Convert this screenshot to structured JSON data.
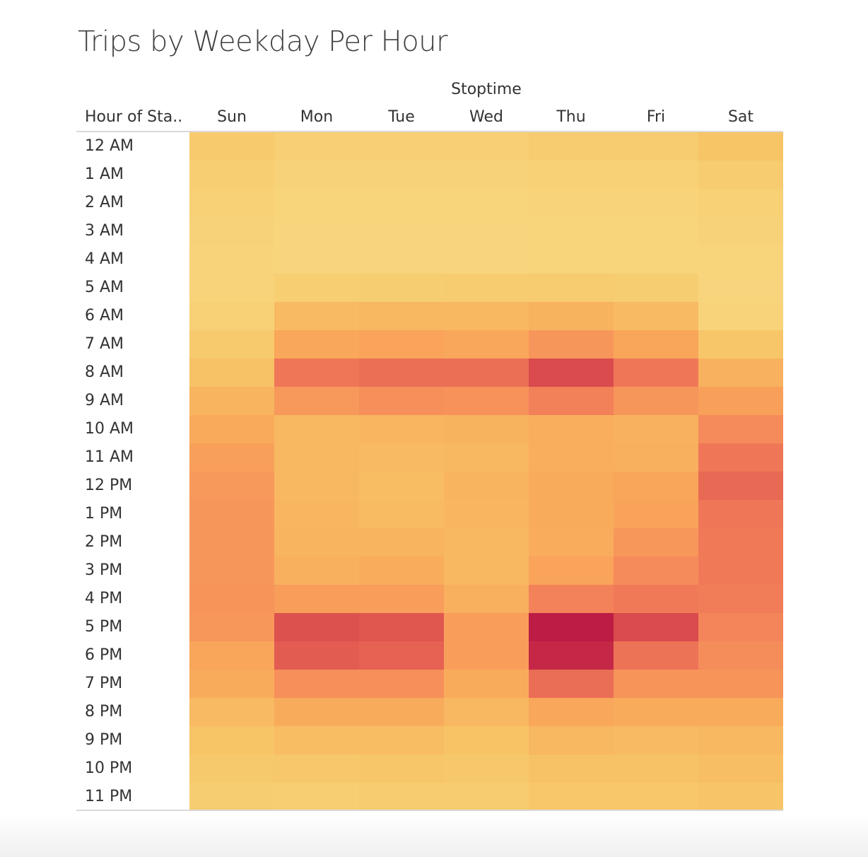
{
  "chart_data": {
    "type": "heatmap",
    "title": "Trips by Weekday Per Hour",
    "column_group_label": "Stoptime",
    "row_header_label": "Hour of Sta..",
    "columns": [
      "Sun",
      "Mon",
      "Tue",
      "Wed",
      "Thu",
      "Fri",
      "Sat"
    ],
    "rows": [
      "12 AM",
      "1 AM",
      "2 AM",
      "3 AM",
      "4 AM",
      "5 AM",
      "6 AM",
      "7 AM",
      "8 AM",
      "9 AM",
      "10 AM",
      "11 AM",
      "12 PM",
      "1 PM",
      "2 PM",
      "3 PM",
      "4 PM",
      "5 PM",
      "6 PM",
      "7 PM",
      "8 PM",
      "9 PM",
      "10 PM",
      "11 PM"
    ],
    "values": [
      [
        0.14,
        0.09,
        0.09,
        0.09,
        0.12,
        0.12,
        0.2
      ],
      [
        0.1,
        0.06,
        0.06,
        0.06,
        0.07,
        0.07,
        0.12
      ],
      [
        0.08,
        0.04,
        0.04,
        0.04,
        0.05,
        0.05,
        0.08
      ],
      [
        0.06,
        0.03,
        0.03,
        0.03,
        0.04,
        0.04,
        0.06
      ],
      [
        0.05,
        0.03,
        0.03,
        0.03,
        0.04,
        0.04,
        0.04
      ],
      [
        0.05,
        0.1,
        0.11,
        0.12,
        0.13,
        0.11,
        0.03
      ],
      [
        0.07,
        0.27,
        0.29,
        0.29,
        0.32,
        0.27,
        0.05
      ],
      [
        0.14,
        0.4,
        0.42,
        0.4,
        0.5,
        0.41,
        0.18
      ],
      [
        0.22,
        0.66,
        0.7,
        0.7,
        0.85,
        0.66,
        0.33
      ],
      [
        0.31,
        0.48,
        0.54,
        0.52,
        0.62,
        0.5,
        0.44
      ],
      [
        0.38,
        0.28,
        0.3,
        0.32,
        0.35,
        0.33,
        0.56
      ],
      [
        0.44,
        0.28,
        0.27,
        0.29,
        0.35,
        0.34,
        0.66
      ],
      [
        0.48,
        0.28,
        0.25,
        0.31,
        0.37,
        0.41,
        0.73
      ],
      [
        0.5,
        0.3,
        0.26,
        0.3,
        0.37,
        0.43,
        0.66
      ],
      [
        0.5,
        0.31,
        0.31,
        0.29,
        0.36,
        0.49,
        0.65
      ],
      [
        0.5,
        0.34,
        0.36,
        0.29,
        0.42,
        0.56,
        0.65
      ],
      [
        0.51,
        0.46,
        0.46,
        0.34,
        0.61,
        0.65,
        0.64
      ],
      [
        0.49,
        0.83,
        0.81,
        0.45,
        1.0,
        0.85,
        0.6
      ],
      [
        0.41,
        0.79,
        0.76,
        0.45,
        0.96,
        0.68,
        0.55
      ],
      [
        0.37,
        0.54,
        0.54,
        0.37,
        0.71,
        0.51,
        0.51
      ],
      [
        0.27,
        0.37,
        0.37,
        0.28,
        0.4,
        0.37,
        0.37
      ],
      [
        0.2,
        0.25,
        0.25,
        0.21,
        0.29,
        0.27,
        0.29
      ],
      [
        0.15,
        0.16,
        0.18,
        0.16,
        0.22,
        0.22,
        0.24
      ],
      [
        0.11,
        0.1,
        0.12,
        0.12,
        0.17,
        0.17,
        0.19
      ]
    ],
    "color_scale": [
      "#f8d880",
      "#f7c466",
      "#f9a75a",
      "#f4845a",
      "#e25a50",
      "#bd1c44"
    ],
    "grid": false,
    "legend": "none"
  }
}
